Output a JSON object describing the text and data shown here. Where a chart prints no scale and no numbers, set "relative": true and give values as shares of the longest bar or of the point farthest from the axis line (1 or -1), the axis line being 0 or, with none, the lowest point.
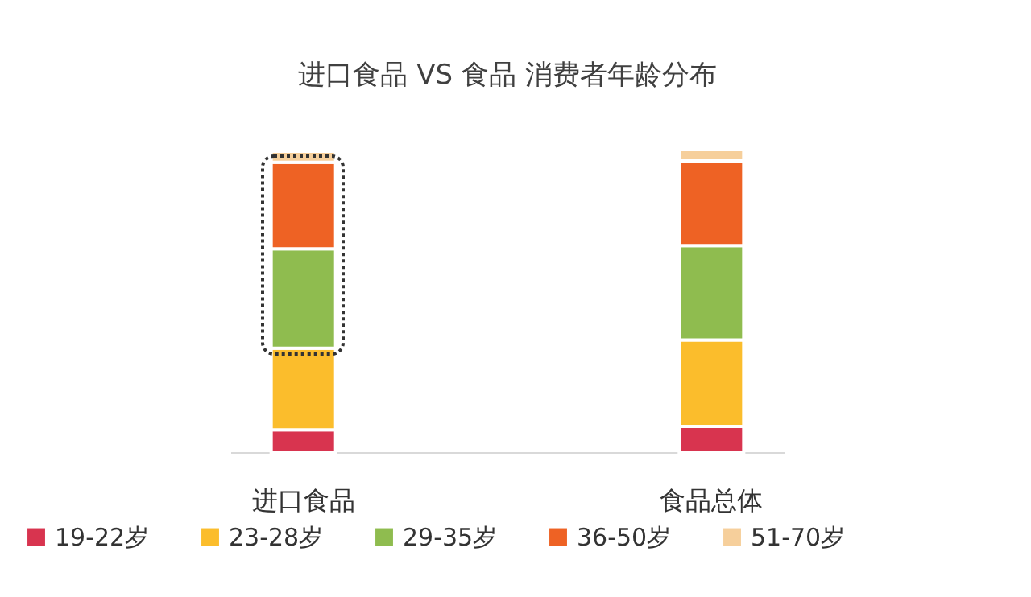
{
  "chart_data": {
    "type": "bar",
    "title": "进口食品 VS 食品 消费者年龄分布",
    "stacked": true,
    "relative": true,
    "legend": "bottom",
    "categories": [
      "进口食品",
      "食品总体"
    ],
    "series": [
      {
        "name": "19-22岁",
        "color": "#d8344f",
        "values": [
          0.074,
          0.085
        ]
      },
      {
        "name": "23-28岁",
        "color": "#fbbd2c",
        "values": [
          0.27,
          0.286
        ]
      },
      {
        "name": "29-35岁",
        "color": "#8fbc4f",
        "values": [
          0.328,
          0.312
        ]
      },
      {
        "name": "36-50岁",
        "color": "#ee6224",
        "values": [
          0.286,
          0.28
        ]
      },
      {
        "name": "51-70岁",
        "color": "#f6cf9b",
        "values": [
          0.037,
          0.037
        ]
      }
    ]
  }
}
